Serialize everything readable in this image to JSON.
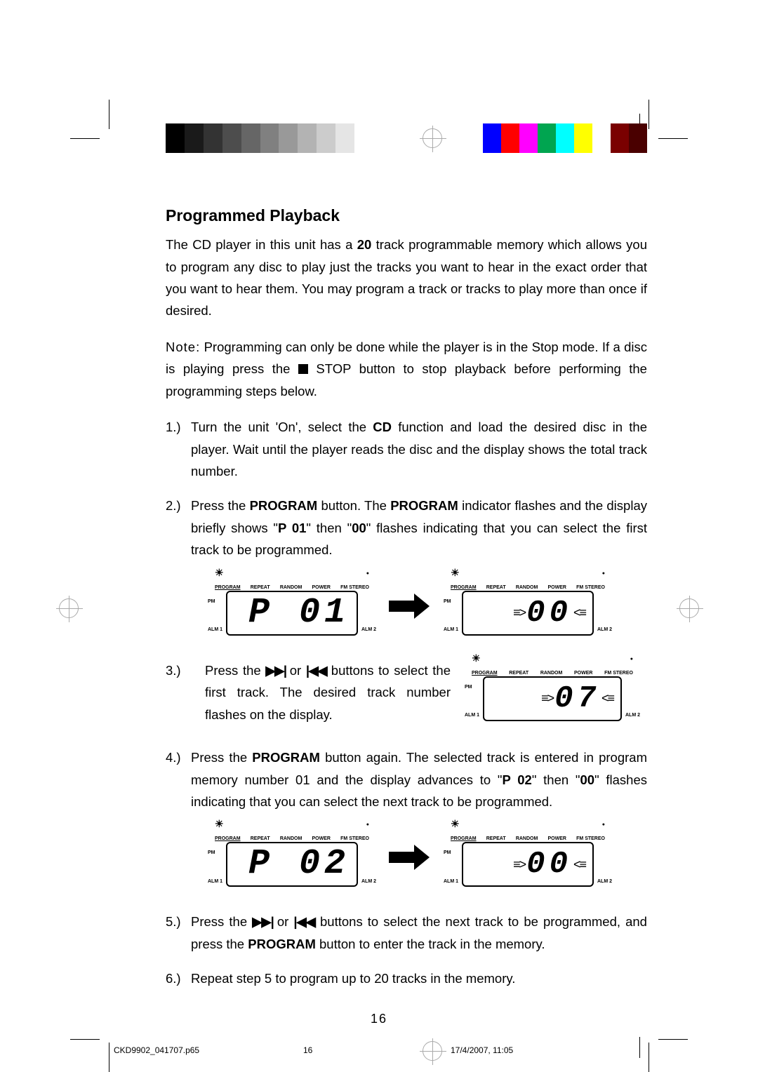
{
  "colorbar": {
    "grayscale": [
      "#000000",
      "#1a1a1a",
      "#333333",
      "#4d4d4d",
      "#666666",
      "#808080",
      "#999999",
      "#b3b3b3",
      "#cccccc",
      "#e5e5e5",
      "#ffffff"
    ],
    "colors": [
      "#0000ff",
      "#ff0000",
      "#ff00ff",
      "#00a550",
      "#00ffff",
      "#ffff00",
      "#ffffff",
      "#7a0000",
      "#4a0000"
    ]
  },
  "heading": "Programmed Playback",
  "intro_pre": "The CD player in this unit has a ",
  "intro_bold": "20",
  "intro_post": " track programmable memory which allows you to program any disc to play just the tracks you want to hear in the exact order that you want to hear them. You may program a track or tracks to play more than once if desired.",
  "note_label": "Note:",
  "note_body_1": " Programming can only be done while the player is in the Stop mode. If a disc is playing press the ",
  "note_body_2": " STOP button to stop playback before performing the programming steps below.",
  "step1_num": "1.)",
  "step1_a": "Turn the unit 'On', select the ",
  "step1_cd": "CD",
  "step1_b": " function and load the desired disc in the player. Wait until the player reads the disc and the display shows the total track number.",
  "step2_num": "2.)",
  "step2_a": "Press the ",
  "step2_prog": "PROGRAM",
  "step2_b": " button. The ",
  "step2_prog2": "PROGRAM",
  "step2_c": " indicator flashes and the display briefly shows \"",
  "step2_p01": "P 01",
  "step2_d": "\" then \"",
  "step2_00": "00",
  "step2_e": "\" flashes indicating that you can select the first track to be programmed.",
  "step3_num": "3.)",
  "step3_a": "Press the ",
  "step3_b": " or ",
  "step3_c": " buttons to select the first track. The desired track number flashes on the display.",
  "step4_num": "4.)",
  "step4_a": "Press the ",
  "step4_prog": "PROGRAM",
  "step4_b": " button again. The selected track is entered in program memory number 01 and the display advances to \"",
  "step4_p02": "P 02",
  "step4_c": "\" then \"",
  "step4_00": "00",
  "step4_d": "\" flashes indicating that you can select the next track to be programmed.",
  "step5_num": "5.)",
  "step5_a": "Press the ",
  "step5_b": " or ",
  "step5_c": " buttons to select the next track to be programmed, and press the ",
  "step5_prog": "PROGRAM",
  "step5_d": " button to enter the track in the memory.",
  "step6_num": "6.)",
  "step6_a": "Repeat step 5 to program up to 20 tracks in the memory.",
  "lcd": {
    "labels": [
      "PROGRAM",
      "REPEAT",
      "RANDOM",
      "POWER",
      "FM STEREO"
    ],
    "pm": "PM",
    "alm1": "ALM 1",
    "alm2": "ALM 2",
    "disp_p01": "P 01",
    "disp_00": "00",
    "disp_07": "07",
    "disp_p02": "P 02"
  },
  "page_number": "16",
  "footer": {
    "file": "CKD9902_041707.p65",
    "page": "16",
    "date": "17/4/2007, 11:05"
  }
}
